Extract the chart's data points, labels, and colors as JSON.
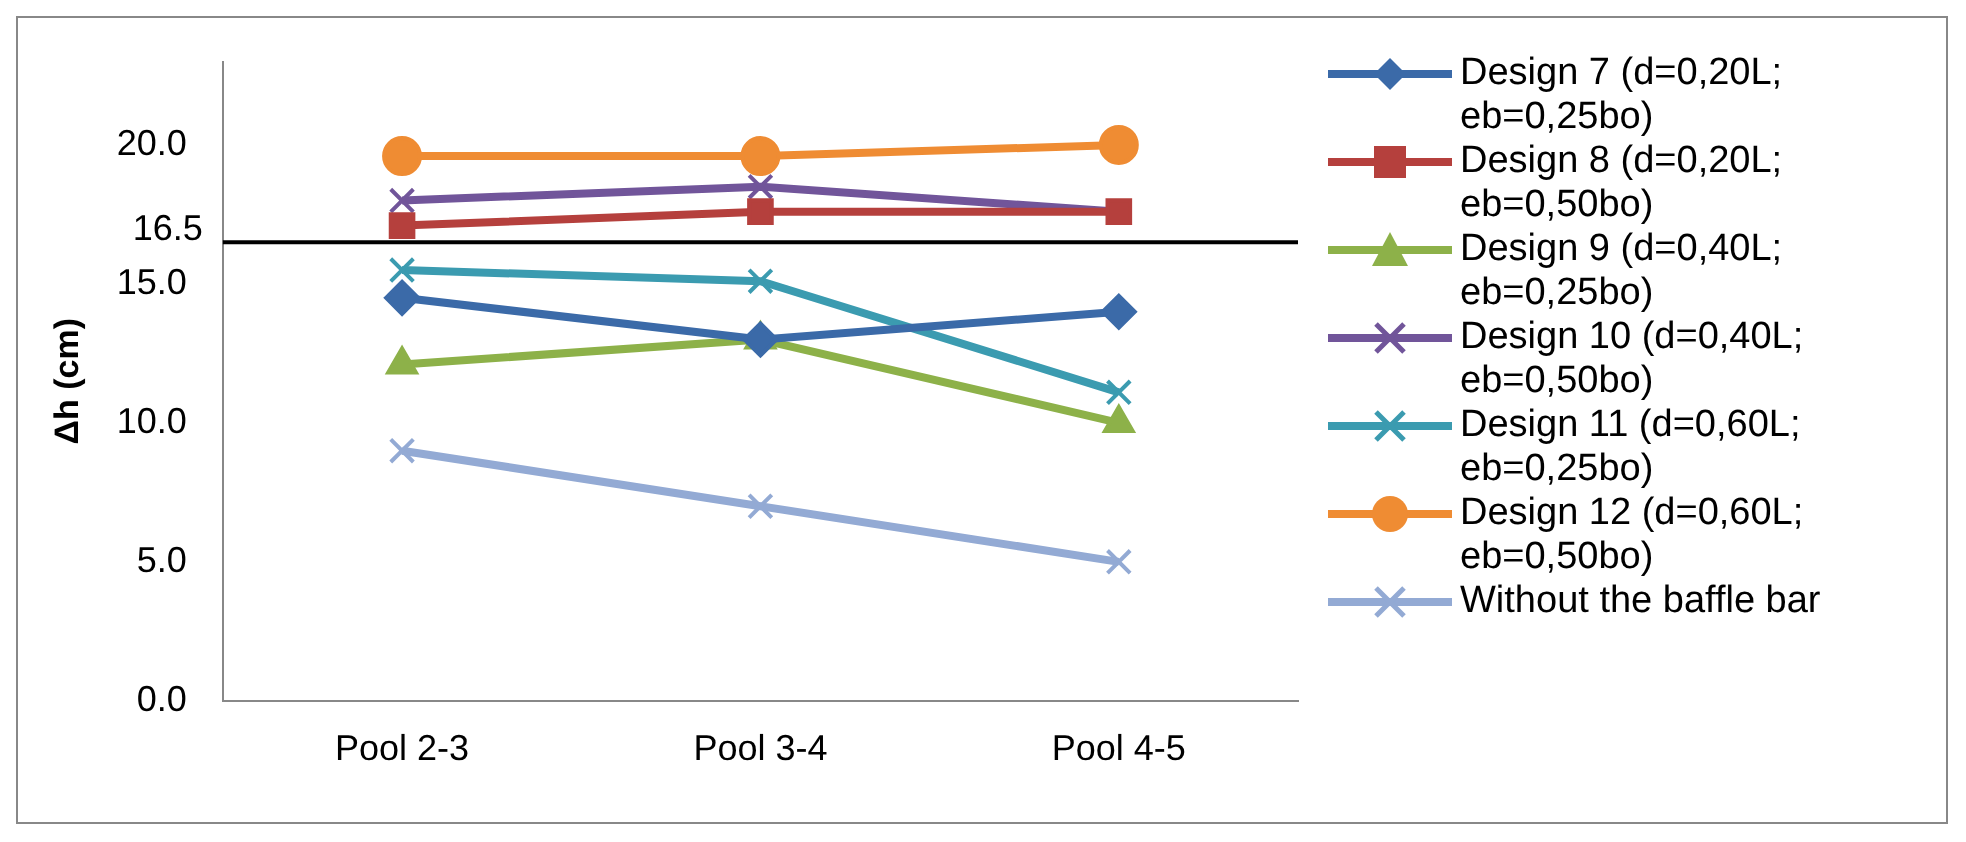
{
  "chart_data": {
    "type": "line",
    "ylabel": "Δh (cm)",
    "categories": [
      "Pool 2-3",
      "Pool 3-4",
      "Pool 4-5"
    ],
    "series": [
      {
        "name": "Design 7 (d=0,20L; eb=0,25bo)",
        "color": "#3b6aa8",
        "marker": "diamond",
        "values": [
          14.5,
          13.0,
          14.0
        ]
      },
      {
        "name": "Design 8 (d=0,20L; eb=0,50bo)",
        "color": "#b5403d",
        "marker": "square",
        "values": [
          17.1,
          17.6,
          17.6
        ]
      },
      {
        "name": "Design 9 (d=0,40L; eb=0,25bo)",
        "color": "#8db149",
        "marker": "triangle",
        "values": [
          12.1,
          13.0,
          10.0
        ]
      },
      {
        "name": "Design 10 (d=0,40L; eb=0,50bo)",
        "color": "#71559a",
        "marker": "cross",
        "values": [
          18.0,
          18.5,
          17.6
        ]
      },
      {
        "name": "Design 11 (d=0,60L; eb=0,25bo)",
        "color": "#3b9bb0",
        "marker": "cross",
        "values": [
          15.5,
          15.1,
          11.1
        ]
      },
      {
        "name": "Design 12 (d=0,60L; eb=0,50bo)",
        "color": "#ef8c33",
        "marker": "circle",
        "values": [
          19.6,
          19.6,
          20.0
        ]
      },
      {
        "name": "Without the baffle bar",
        "color": "#93aad4",
        "marker": "cross",
        "values": [
          9.0,
          7.0,
          5.0
        ]
      }
    ],
    "ylim": [
      0,
      23
    ],
    "yticks": [
      {
        "value": 0,
        "label": "0.0"
      },
      {
        "value": 5,
        "label": "5.0"
      },
      {
        "value": 10,
        "label": "10.0"
      },
      {
        "value": 15,
        "label": "15.0"
      },
      {
        "value": 20,
        "label": "20.0"
      }
    ],
    "ref_lines": [
      {
        "axis": "y",
        "value": 16.5,
        "label": "16.5",
        "color": "#000000"
      }
    ],
    "grid": false,
    "legend": "right"
  }
}
